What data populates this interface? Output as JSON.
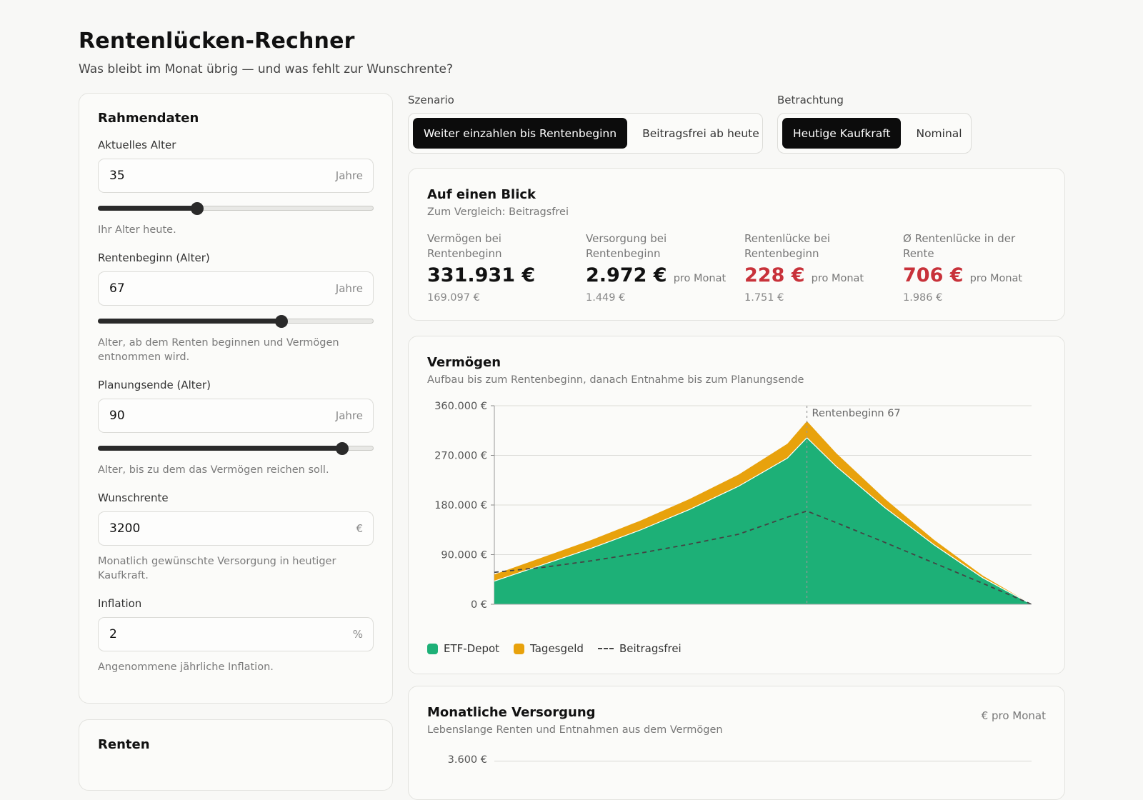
{
  "header": {
    "title": "Rentenlücken-Rechner",
    "subtitle": "Was bleibt im Monat übrig — und was fehlt zur Wunschrente?"
  },
  "rahmendaten": {
    "title": "Rahmendaten",
    "age": {
      "label": "Aktuelles Alter",
      "value": "35",
      "unit": "Jahre",
      "slider_fraction": 0.36,
      "help": "Ihr Alter heute."
    },
    "retirement": {
      "label": "Rentenbeginn (Alter)",
      "value": "67",
      "unit": "Jahre",
      "slider_fraction": 0.665,
      "help": "Alter, ab dem Renten beginnen und Vermögen entnommen wird."
    },
    "planning_end": {
      "label": "Planungsende (Alter)",
      "value": "90",
      "unit": "Jahre",
      "slider_fraction": 0.885,
      "help": "Alter, bis zu dem das Vermögen reichen soll."
    },
    "desired_pension": {
      "label": "Wunschrente",
      "value": "3200",
      "unit": "€",
      "help": "Monatlich gewünschte Versorgung in heutiger Kaufkraft."
    },
    "inflation": {
      "label": "Inflation",
      "value": "2",
      "unit": "%",
      "help": "Angenommene jährliche Inflation."
    }
  },
  "renten": {
    "title": "Renten"
  },
  "scenario": {
    "label": "Szenario",
    "options": [
      "Weiter einzahlen bis Rentenbeginn",
      "Beitragsfrei ab heute"
    ],
    "selected": "Weiter einzahlen bis Rentenbeginn"
  },
  "view": {
    "label": "Betrachtung",
    "options": [
      "Heutige Kaufkraft",
      "Nominal"
    ],
    "selected": "Heutige Kaufkraft"
  },
  "summary": {
    "title": "Auf einen Blick",
    "subtitle": "Zum Vergleich: Beitragsfrei",
    "kpis": [
      {
        "label": "Vermögen bei Rentenbeginn",
        "value": "331.931 €",
        "unit": "",
        "compare": "169.097 €",
        "highlight": false
      },
      {
        "label": "Versorgung bei Rentenbeginn",
        "value": "2.972 €",
        "unit": "pro Monat",
        "compare": "1.449 €",
        "highlight": false
      },
      {
        "label": "Rentenlücke bei Rentenbeginn",
        "value": "228 €",
        "unit": "pro Monat",
        "compare": "1.751 €",
        "highlight": true
      },
      {
        "label": "Ø Rentenlücke in der Rente",
        "value": "706 €",
        "unit": "pro Monat",
        "compare": "1.986 €",
        "highlight": true
      }
    ]
  },
  "wealth_chart": {
    "title": "Vermögen",
    "subtitle": "Aufbau bis zum Rentenbeginn, danach Entnahme bis zum Planungsende",
    "marker_label": "Rentenbeginn 67",
    "legend": {
      "etf": "ETF-Depot",
      "tagesgeld": "Tagesgeld",
      "beitragsfrei": "Beitragsfrei"
    }
  },
  "monthly_chart": {
    "title": "Monatliche Versorgung",
    "subtitle": "Lebenslange Renten und Entnahmen aus dem Vermögen",
    "unit": "€ pro Monat",
    "first_tick": "3.600 €"
  },
  "chart_data": {
    "type": "area",
    "title": "Vermögen",
    "x": [
      35,
      40,
      45,
      50,
      55,
      60,
      65,
      67,
      70,
      75,
      80,
      85,
      90
    ],
    "yticks": [
      "0 €",
      "90.000 €",
      "180.000 €",
      "270.000 €",
      "360.000 €"
    ],
    "ylim": [
      0,
      360000
    ],
    "xlim": [
      35,
      90
    ],
    "marker_x": 67,
    "series": [
      {
        "name": "ETF-Depot",
        "color": "#1db077",
        "values": [
          42000,
          72000,
          102000,
          135000,
          172000,
          214000,
          265000,
          302000,
          250000,
          175000,
          108000,
          48000,
          0
        ]
      },
      {
        "name": "Tagesgeld",
        "color": "#e8a20c",
        "values": [
          12000,
          13500,
          15000,
          17000,
          19000,
          21000,
          26000,
          30000,
          24000,
          16000,
          9000,
          4000,
          0
        ]
      },
      {
        "name": "Beitragsfrei",
        "color": "#444444",
        "dashed": true,
        "values": [
          58000,
          67000,
          79000,
          93000,
          109000,
          127000,
          158000,
          169000,
          148000,
          112000,
          75000,
          38000,
          0
        ]
      }
    ]
  }
}
